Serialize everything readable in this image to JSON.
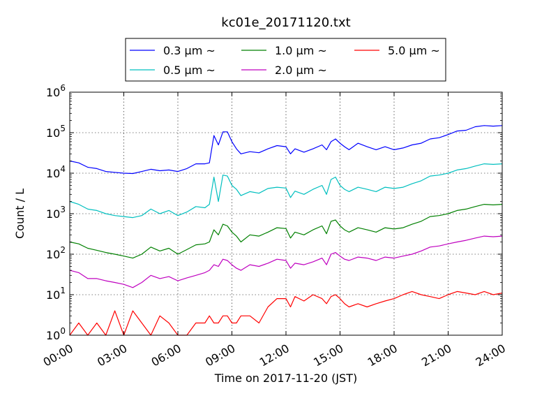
{
  "chart_data": {
    "type": "line",
    "title": "kc01e_20171120.txt",
    "xlabel": "Time on 2017-11-20 (JST)",
    "ylabel": "Count / L",
    "yscale": "log",
    "xlim": [
      "00:00",
      "24:00"
    ],
    "ylim": [
      1,
      1000000
    ],
    "grid": true,
    "legend_position": "top-center",
    "x_ticks": [
      "00:00",
      "03:00",
      "06:00",
      "09:00",
      "12:00",
      "15:00",
      "18:00",
      "21:00",
      "24:00"
    ],
    "y_ticks": [
      {
        "value": 1,
        "base": "10",
        "exp": "0"
      },
      {
        "value": 10,
        "base": "10",
        "exp": "1"
      },
      {
        "value": 100,
        "base": "10",
        "exp": "2"
      },
      {
        "value": 1000,
        "base": "10",
        "exp": "3"
      },
      {
        "value": 10000,
        "base": "10",
        "exp": "4"
      },
      {
        "value": 100000,
        "base": "10",
        "exp": "5"
      },
      {
        "value": 1000000,
        "base": "10",
        "exp": "6"
      }
    ],
    "series": [
      {
        "name": "0.3 μm ~",
        "color": "#0000ff",
        "points": [
          [
            "00:00",
            20000
          ],
          [
            "00:30",
            18000
          ],
          [
            "01:00",
            14000
          ],
          [
            "01:30",
            13000
          ],
          [
            "02:00",
            11000
          ],
          [
            "02:30",
            10500
          ],
          [
            "03:00",
            10000
          ],
          [
            "03:30",
            9800
          ],
          [
            "04:00",
            11000
          ],
          [
            "04:30",
            12500
          ],
          [
            "05:00",
            11500
          ],
          [
            "05:30",
            12000
          ],
          [
            "06:00",
            11000
          ],
          [
            "06:30",
            13000
          ],
          [
            "07:00",
            17000
          ],
          [
            "07:30",
            17000
          ],
          [
            "07:45",
            18000
          ],
          [
            "08:00",
            85000
          ],
          [
            "08:15",
            50000
          ],
          [
            "08:30",
            105000
          ],
          [
            "08:45",
            105000
          ],
          [
            "09:00",
            60000
          ],
          [
            "09:15",
            40000
          ],
          [
            "09:30",
            30000
          ],
          [
            "10:00",
            34000
          ],
          [
            "10:30",
            32000
          ],
          [
            "11:00",
            40000
          ],
          [
            "11:30",
            48000
          ],
          [
            "12:00",
            45000
          ],
          [
            "12:15",
            30000
          ],
          [
            "12:30",
            40000
          ],
          [
            "13:00",
            33000
          ],
          [
            "13:30",
            40000
          ],
          [
            "14:00",
            50000
          ],
          [
            "14:15",
            38000
          ],
          [
            "14:30",
            60000
          ],
          [
            "14:45",
            70000
          ],
          [
            "15:00",
            55000
          ],
          [
            "15:15",
            45000
          ],
          [
            "15:30",
            38000
          ],
          [
            "16:00",
            55000
          ],
          [
            "16:30",
            45000
          ],
          [
            "17:00",
            38000
          ],
          [
            "17:30",
            45000
          ],
          [
            "18:00",
            38000
          ],
          [
            "18:30",
            42000
          ],
          [
            "19:00",
            50000
          ],
          [
            "19:30",
            55000
          ],
          [
            "20:00",
            70000
          ],
          [
            "20:30",
            75000
          ],
          [
            "21:00",
            90000
          ],
          [
            "21:30",
            110000
          ],
          [
            "22:00",
            115000
          ],
          [
            "22:30",
            140000
          ],
          [
            "23:00",
            150000
          ],
          [
            "23:30",
            145000
          ],
          [
            "24:00",
            150000
          ]
        ]
      },
      {
        "name": "0.5 μm ~",
        "color": "#00bfbf",
        "points": [
          [
            "00:00",
            2000
          ],
          [
            "00:30",
            1700
          ],
          [
            "01:00",
            1300
          ],
          [
            "01:30",
            1200
          ],
          [
            "02:00",
            1000
          ],
          [
            "02:30",
            900
          ],
          [
            "03:00",
            850
          ],
          [
            "03:30",
            800
          ],
          [
            "04:00",
            900
          ],
          [
            "04:30",
            1300
          ],
          [
            "05:00",
            1000
          ],
          [
            "05:30",
            1200
          ],
          [
            "06:00",
            900
          ],
          [
            "06:30",
            1100
          ],
          [
            "07:00",
            1500
          ],
          [
            "07:30",
            1400
          ],
          [
            "07:45",
            1700
          ],
          [
            "08:00",
            8000
          ],
          [
            "08:15",
            2000
          ],
          [
            "08:30",
            9000
          ],
          [
            "08:45",
            8500
          ],
          [
            "09:00",
            5000
          ],
          [
            "09:15",
            4000
          ],
          [
            "09:30",
            2800
          ],
          [
            "10:00",
            3500
          ],
          [
            "10:30",
            3200
          ],
          [
            "11:00",
            4200
          ],
          [
            "11:30",
            4500
          ],
          [
            "12:00",
            4300
          ],
          [
            "12:15",
            2500
          ],
          [
            "12:30",
            3600
          ],
          [
            "13:00",
            3000
          ],
          [
            "13:30",
            4000
          ],
          [
            "14:00",
            5000
          ],
          [
            "14:15",
            3000
          ],
          [
            "14:30",
            7000
          ],
          [
            "14:45",
            8000
          ],
          [
            "15:00",
            5000
          ],
          [
            "15:15",
            4000
          ],
          [
            "15:30",
            3500
          ],
          [
            "16:00",
            4500
          ],
          [
            "16:30",
            4000
          ],
          [
            "17:00",
            3500
          ],
          [
            "17:30",
            4500
          ],
          [
            "18:00",
            4200
          ],
          [
            "18:30",
            4500
          ],
          [
            "19:00",
            5500
          ],
          [
            "19:30",
            6500
          ],
          [
            "20:00",
            8500
          ],
          [
            "20:30",
            9000
          ],
          [
            "21:00",
            10000
          ],
          [
            "21:30",
            12000
          ],
          [
            "22:00",
            13000
          ],
          [
            "22:30",
            15000
          ],
          [
            "23:00",
            17000
          ],
          [
            "23:30",
            16500
          ],
          [
            "24:00",
            17000
          ]
        ]
      },
      {
        "name": "1.0 μm ~",
        "color": "#008000",
        "points": [
          [
            "00:00",
            200
          ],
          [
            "00:30",
            180
          ],
          [
            "01:00",
            140
          ],
          [
            "01:30",
            125
          ],
          [
            "02:00",
            110
          ],
          [
            "02:30",
            100
          ],
          [
            "03:00",
            90
          ],
          [
            "03:30",
            80
          ],
          [
            "04:00",
            100
          ],
          [
            "04:30",
            150
          ],
          [
            "05:00",
            120
          ],
          [
            "05:30",
            140
          ],
          [
            "06:00",
            100
          ],
          [
            "06:30",
            130
          ],
          [
            "07:00",
            170
          ],
          [
            "07:30",
            180
          ],
          [
            "07:45",
            200
          ],
          [
            "08:00",
            400
          ],
          [
            "08:15",
            300
          ],
          [
            "08:30",
            550
          ],
          [
            "08:45",
            500
          ],
          [
            "09:00",
            350
          ],
          [
            "09:15",
            280
          ],
          [
            "09:30",
            200
          ],
          [
            "10:00",
            300
          ],
          [
            "10:30",
            280
          ],
          [
            "11:00",
            350
          ],
          [
            "11:30",
            450
          ],
          [
            "12:00",
            430
          ],
          [
            "12:15",
            250
          ],
          [
            "12:30",
            350
          ],
          [
            "13:00",
            300
          ],
          [
            "13:30",
            400
          ],
          [
            "14:00",
            500
          ],
          [
            "14:15",
            320
          ],
          [
            "14:30",
            650
          ],
          [
            "14:45",
            700
          ],
          [
            "15:00",
            500
          ],
          [
            "15:15",
            400
          ],
          [
            "15:30",
            350
          ],
          [
            "16:00",
            450
          ],
          [
            "16:30",
            400
          ],
          [
            "17:00",
            350
          ],
          [
            "17:30",
            450
          ],
          [
            "18:00",
            420
          ],
          [
            "18:30",
            450
          ],
          [
            "19:00",
            550
          ],
          [
            "19:30",
            650
          ],
          [
            "20:00",
            850
          ],
          [
            "20:30",
            900
          ],
          [
            "21:00",
            1000
          ],
          [
            "21:30",
            1200
          ],
          [
            "22:00",
            1300
          ],
          [
            "22:30",
            1500
          ],
          [
            "23:00",
            1700
          ],
          [
            "23:30",
            1650
          ],
          [
            "24:00",
            1700
          ]
        ]
      },
      {
        "name": "2.0 μm ~",
        "color": "#bf00bf",
        "points": [
          [
            "00:00",
            40
          ],
          [
            "00:30",
            35
          ],
          [
            "01:00",
            25
          ],
          [
            "01:30",
            25
          ],
          [
            "02:00",
            22
          ],
          [
            "02:30",
            20
          ],
          [
            "03:00",
            18
          ],
          [
            "03:30",
            15
          ],
          [
            "04:00",
            20
          ],
          [
            "04:30",
            30
          ],
          [
            "05:00",
            25
          ],
          [
            "05:30",
            28
          ],
          [
            "06:00",
            22
          ],
          [
            "06:30",
            26
          ],
          [
            "07:00",
            30
          ],
          [
            "07:30",
            35
          ],
          [
            "07:45",
            40
          ],
          [
            "08:00",
            55
          ],
          [
            "08:15",
            50
          ],
          [
            "08:30",
            75
          ],
          [
            "08:45",
            70
          ],
          [
            "09:00",
            55
          ],
          [
            "09:15",
            45
          ],
          [
            "09:30",
            40
          ],
          [
            "10:00",
            55
          ],
          [
            "10:30",
            50
          ],
          [
            "11:00",
            60
          ],
          [
            "11:30",
            75
          ],
          [
            "12:00",
            70
          ],
          [
            "12:15",
            45
          ],
          [
            "12:30",
            60
          ],
          [
            "13:00",
            55
          ],
          [
            "13:30",
            65
          ],
          [
            "14:00",
            80
          ],
          [
            "14:15",
            55
          ],
          [
            "14:30",
            100
          ],
          [
            "14:45",
            110
          ],
          [
            "15:00",
            90
          ],
          [
            "15:15",
            75
          ],
          [
            "15:30",
            70
          ],
          [
            "16:00",
            85
          ],
          [
            "16:30",
            80
          ],
          [
            "17:00",
            70
          ],
          [
            "17:30",
            85
          ],
          [
            "18:00",
            80
          ],
          [
            "18:30",
            90
          ],
          [
            "19:00",
            100
          ],
          [
            "19:30",
            120
          ],
          [
            "20:00",
            150
          ],
          [
            "20:30",
            160
          ],
          [
            "21:00",
            180
          ],
          [
            "21:30",
            200
          ],
          [
            "22:00",
            220
          ],
          [
            "22:30",
            250
          ],
          [
            "23:00",
            280
          ],
          [
            "23:30",
            270
          ],
          [
            "24:00",
            280
          ]
        ]
      },
      {
        "name": "5.0 μm ~",
        "color": "#ff0000",
        "points": [
          [
            "00:00",
            1
          ],
          [
            "00:30",
            2
          ],
          [
            "01:00",
            1
          ],
          [
            "01:30",
            2
          ],
          [
            "02:00",
            1
          ],
          [
            "02:30",
            4
          ],
          [
            "03:00",
            1
          ],
          [
            "03:30",
            4
          ],
          [
            "04:00",
            2
          ],
          [
            "04:30",
            1
          ],
          [
            "05:00",
            3
          ],
          [
            "05:30",
            2
          ],
          [
            "06:00",
            1
          ],
          [
            "06:30",
            1
          ],
          [
            "07:00",
            2
          ],
          [
            "07:30",
            2
          ],
          [
            "07:45",
            3
          ],
          [
            "08:00",
            2
          ],
          [
            "08:15",
            2
          ],
          [
            "08:30",
            3
          ],
          [
            "08:45",
            3
          ],
          [
            "09:00",
            2
          ],
          [
            "09:15",
            2
          ],
          [
            "09:30",
            3
          ],
          [
            "10:00",
            3
          ],
          [
            "10:30",
            2
          ],
          [
            "11:00",
            5
          ],
          [
            "11:30",
            8
          ],
          [
            "12:00",
            8
          ],
          [
            "12:15",
            5
          ],
          [
            "12:30",
            9
          ],
          [
            "13:00",
            7
          ],
          [
            "13:30",
            10
          ],
          [
            "14:00",
            8
          ],
          [
            "14:15",
            6
          ],
          [
            "14:30",
            9
          ],
          [
            "14:45",
            10
          ],
          [
            "15:00",
            8
          ],
          [
            "15:15",
            6
          ],
          [
            "15:30",
            5
          ],
          [
            "16:00",
            6
          ],
          [
            "16:30",
            5
          ],
          [
            "17:00",
            6
          ],
          [
            "17:30",
            7
          ],
          [
            "18:00",
            8
          ],
          [
            "18:30",
            10
          ],
          [
            "19:00",
            12
          ],
          [
            "19:30",
            10
          ],
          [
            "20:00",
            9
          ],
          [
            "20:30",
            8
          ],
          [
            "21:00",
            10
          ],
          [
            "21:30",
            12
          ],
          [
            "22:00",
            11
          ],
          [
            "22:30",
            10
          ],
          [
            "23:00",
            12
          ],
          [
            "23:30",
            10
          ],
          [
            "24:00",
            11
          ]
        ]
      }
    ]
  }
}
